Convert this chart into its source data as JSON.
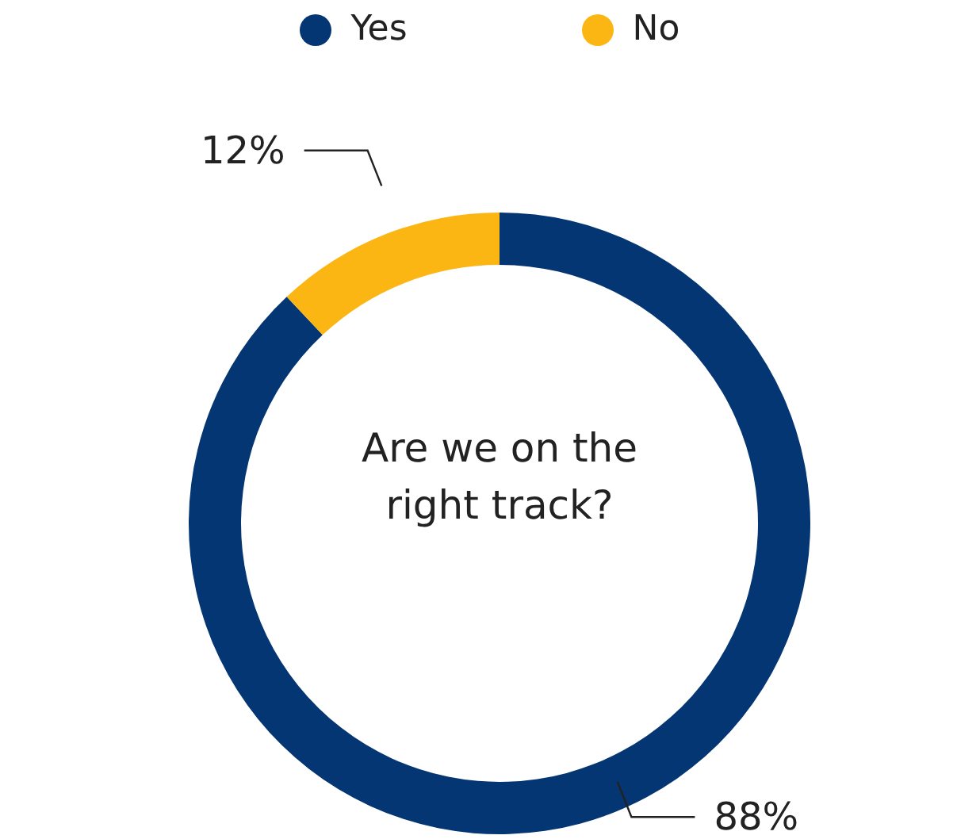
{
  "chart_data": {
    "type": "donut",
    "title": "Are we on the right track?",
    "categories": [
      "Yes",
      "No"
    ],
    "values": [
      88,
      12
    ],
    "colors": [
      "#043673",
      "#fbb614"
    ],
    "legend": "top",
    "value_labels": [
      "88%",
      "12%"
    ]
  }
}
